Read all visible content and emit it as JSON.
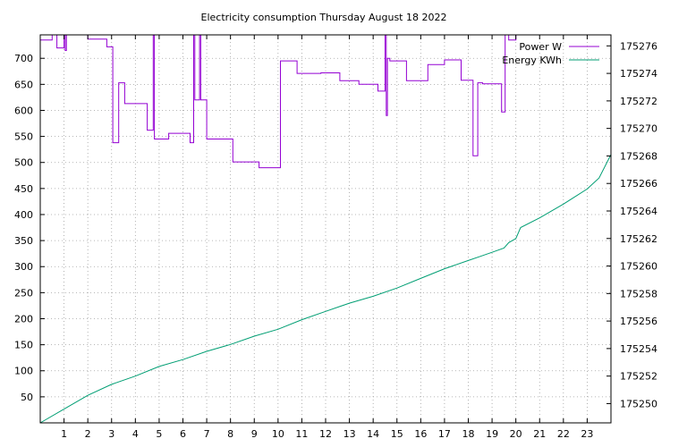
{
  "chart_data": {
    "type": "line",
    "title": "Electricity consumption Thursday August 18 2022",
    "xlim": [
      0,
      24
    ],
    "ylim_left": [
      0,
      745
    ],
    "ylim_right": [
      175248.6,
      175276.8
    ],
    "x_ticks": [
      1,
      2,
      3,
      4,
      5,
      6,
      7,
      8,
      9,
      10,
      11,
      12,
      13,
      14,
      15,
      16,
      17,
      18,
      19,
      20,
      21,
      22,
      23
    ],
    "y_ticks_left": [
      50,
      100,
      150,
      200,
      250,
      300,
      350,
      400,
      450,
      500,
      550,
      600,
      650,
      700
    ],
    "y_ticks_right": [
      175250,
      175252,
      175254,
      175256,
      175258,
      175260,
      175262,
      175264,
      175266,
      175268,
      175270,
      175272,
      175274,
      175276
    ],
    "grid": true,
    "legend_position": "top-right",
    "series": [
      {
        "name": "Power W",
        "color": "#9400d3",
        "axis": "left",
        "step": true,
        "points": [
          [
            0,
            735
          ],
          [
            0.5,
            745
          ],
          [
            0.7,
            720
          ],
          [
            1.0,
            745
          ],
          [
            1.05,
            715
          ],
          [
            1.1,
            745
          ],
          [
            2.0,
            737
          ],
          [
            2.8,
            722
          ],
          [
            3.05,
            538
          ],
          [
            3.3,
            653
          ],
          [
            3.55,
            613
          ],
          [
            4.5,
            562
          ],
          [
            4.75,
            745
          ],
          [
            4.8,
            545
          ],
          [
            5.4,
            556
          ],
          [
            6.3,
            538
          ],
          [
            6.45,
            745
          ],
          [
            6.5,
            620
          ],
          [
            6.7,
            745
          ],
          [
            6.75,
            620
          ],
          [
            7.0,
            545
          ],
          [
            8.1,
            501
          ],
          [
            9.2,
            490
          ],
          [
            10.1,
            695
          ],
          [
            10.8,
            671
          ],
          [
            11.8,
            672
          ],
          [
            12.6,
            657
          ],
          [
            13.4,
            650
          ],
          [
            14.2,
            637
          ],
          [
            14.5,
            745
          ],
          [
            14.55,
            590
          ],
          [
            14.6,
            700
          ],
          [
            14.7,
            695
          ],
          [
            15.4,
            657
          ],
          [
            16.3,
            688
          ],
          [
            17.0,
            697
          ],
          [
            17.7,
            658
          ],
          [
            18.2,
            513
          ],
          [
            18.4,
            653
          ],
          [
            18.6,
            651
          ],
          [
            19.4,
            597
          ],
          [
            19.55,
            745
          ],
          [
            19.7,
            735
          ],
          [
            20.0,
            745
          ]
        ]
      },
      {
        "name": "Energy KWh",
        "color": "#009e73",
        "axis": "right",
        "step": false,
        "points": [
          [
            0,
            175248.6
          ],
          [
            1,
            175249.6
          ],
          [
            2,
            175250.6
          ],
          [
            3,
            175251.4
          ],
          [
            4,
            175252.0
          ],
          [
            5,
            175252.7
          ],
          [
            6,
            175253.2
          ],
          [
            7,
            175253.8
          ],
          [
            8,
            175254.3
          ],
          [
            9,
            175254.9
          ],
          [
            10,
            175255.4
          ],
          [
            11,
            175256.1
          ],
          [
            12,
            175256.7
          ],
          [
            13,
            175257.3
          ],
          [
            14,
            175257.8
          ],
          [
            15,
            175258.4
          ],
          [
            16,
            175259.1
          ],
          [
            17,
            175259.8
          ],
          [
            18,
            175260.4
          ],
          [
            18.5,
            175260.7
          ],
          [
            19.0,
            175261.0
          ],
          [
            19.5,
            175261.3
          ],
          [
            19.7,
            175261.7
          ],
          [
            20.0,
            175262.0
          ],
          [
            20.2,
            175262.8
          ],
          [
            21,
            175263.5
          ],
          [
            22,
            175264.5
          ],
          [
            23,
            175265.6
          ],
          [
            23.5,
            175266.4
          ],
          [
            24,
            175268.1
          ]
        ]
      }
    ]
  }
}
